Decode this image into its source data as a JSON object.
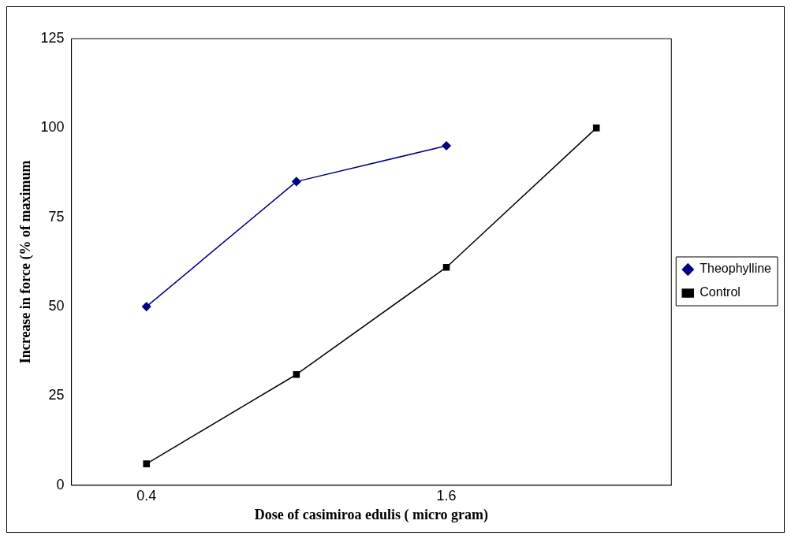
{
  "chart_data": {
    "type": "line",
    "xlabel": "Dose of casimiroa edulis ( micro gram)",
    "ylabel": "Increase in force (% of maximum",
    "categories": [
      "0.4",
      null,
      "1.6",
      null
    ],
    "series": [
      {
        "name": "Theophylline",
        "color": "#000080",
        "values": [
          50,
          85,
          95,
          null
        ],
        "marker": "diamond"
      },
      {
        "name": "Control",
        "color": "#000000",
        "values": [
          6,
          31,
          61,
          100
        ],
        "marker": "square"
      }
    ],
    "ylim": [
      0,
      125
    ],
    "yticks": [
      0,
      25,
      50,
      75,
      100,
      125
    ],
    "grid": false,
    "legend": "right",
    "line_style": "solid"
  }
}
